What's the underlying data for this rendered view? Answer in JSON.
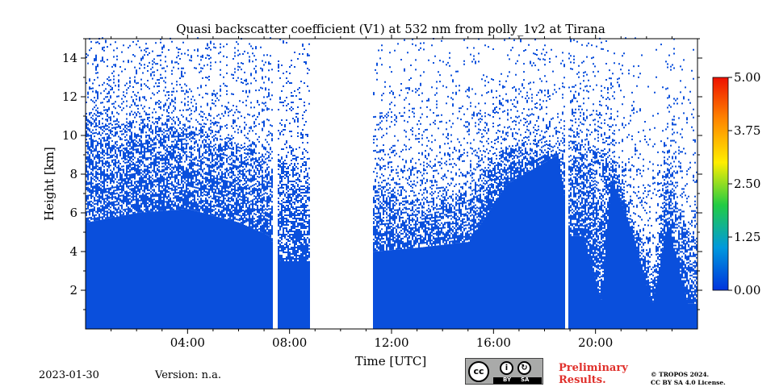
{
  "chart_data": {
    "type": "heatmap",
    "title": "Quasi backscatter coefficient (V1) at 532 nm from polly_1v2 at Tirana",
    "xlabel": "Time [UTC]",
    "ylabel": "Height [km]",
    "xlim_hours": [
      0,
      24
    ],
    "ylim_km": [
      0,
      15
    ],
    "x_ticks": [
      {
        "value": 4,
        "label": "04:00"
      },
      {
        "value": 8,
        "label": "08:00"
      },
      {
        "value": 12,
        "label": "12:00"
      },
      {
        "value": 16,
        "label": "16:00"
      },
      {
        "value": 20,
        "label": "20:00"
      }
    ],
    "y_ticks": [
      {
        "value": 2,
        "label": "2"
      },
      {
        "value": 4,
        "label": "4"
      },
      {
        "value": 6,
        "label": "6"
      },
      {
        "value": 8,
        "label": "8"
      },
      {
        "value": 10,
        "label": "10"
      },
      {
        "value": 12,
        "label": "12"
      },
      {
        "value": 14,
        "label": "14"
      }
    ],
    "colorbar": {
      "range": [
        0,
        5
      ],
      "ticks": [
        {
          "value": 0,
          "label": "0.00"
        },
        {
          "value": 1.25,
          "label": "1.25"
        },
        {
          "value": 2.5,
          "label": "2.50"
        },
        {
          "value": 3.75,
          "label": "3.75"
        },
        {
          "value": 5,
          "label": "5.00"
        }
      ],
      "colors": [
        "#0033dd",
        "#0099dd",
        "#22cc44",
        "#ffee00",
        "#ff8800",
        "#ee1100"
      ]
    },
    "signal_color": "#0a4fdc",
    "no_data_gaps_hours": [
      [
        7.3,
        7.5
      ],
      [
        8.75,
        11.25
      ],
      [
        18.75,
        18.9
      ]
    ],
    "profile_samples": [
      {
        "t": 0.0,
        "solid_top_km": 5.5,
        "noise_top_km": 11.0
      },
      {
        "t": 2.0,
        "solid_top_km": 6.0,
        "noise_top_km": 10.8
      },
      {
        "t": 4.0,
        "solid_top_km": 6.2,
        "noise_top_km": 10.5
      },
      {
        "t": 6.0,
        "solid_top_km": 5.5,
        "noise_top_km": 9.5
      },
      {
        "t": 7.2,
        "solid_top_km": 4.8,
        "noise_top_km": 9.0
      },
      {
        "t": 7.6,
        "solid_top_km": 3.5,
        "noise_top_km": 8.5
      },
      {
        "t": 8.7,
        "solid_top_km": 3.5,
        "noise_top_km": 8.5
      },
      {
        "t": 11.3,
        "solid_top_km": 4.0,
        "noise_top_km": 7.5
      },
      {
        "t": 13.0,
        "solid_top_km": 4.2,
        "noise_top_km": 6.5
      },
      {
        "t": 15.0,
        "solid_top_km": 4.5,
        "noise_top_km": 7.0
      },
      {
        "t": 16.5,
        "solid_top_km": 7.5,
        "noise_top_km": 9.5
      },
      {
        "t": 18.5,
        "solid_top_km": 9.0,
        "noise_top_km": 9.0
      },
      {
        "t": 19.0,
        "solid_top_km": 4.8,
        "noise_top_km": 9.7
      },
      {
        "t": 19.5,
        "solid_top_km": 4.8,
        "noise_top_km": 9.7
      },
      {
        "t": 20.2,
        "solid_top_km": 1.5,
        "noise_top_km": 9.0
      },
      {
        "t": 20.6,
        "solid_top_km": 7.8,
        "noise_top_km": 9.0
      },
      {
        "t": 21.3,
        "solid_top_km": 5.5,
        "noise_top_km": 6.0
      },
      {
        "t": 22.2,
        "solid_top_km": 1.2,
        "noise_top_km": 3.0
      },
      {
        "t": 22.8,
        "solid_top_km": 5.5,
        "noise_top_km": 8.0
      },
      {
        "t": 23.6,
        "solid_top_km": 1.3,
        "noise_top_km": 5.0
      }
    ]
  },
  "footer": {
    "date": "2023-01-30",
    "version": "Version: n.a.",
    "prelim_line1": "Preliminary",
    "prelim_line2": "Results.",
    "copyright_line1": "© TROPOS 2024.",
    "copyright_line2": "CC BY SA 4.0 License.",
    "cc_label": "cc",
    "by_label": "BY",
    "sa_label": "SA"
  }
}
